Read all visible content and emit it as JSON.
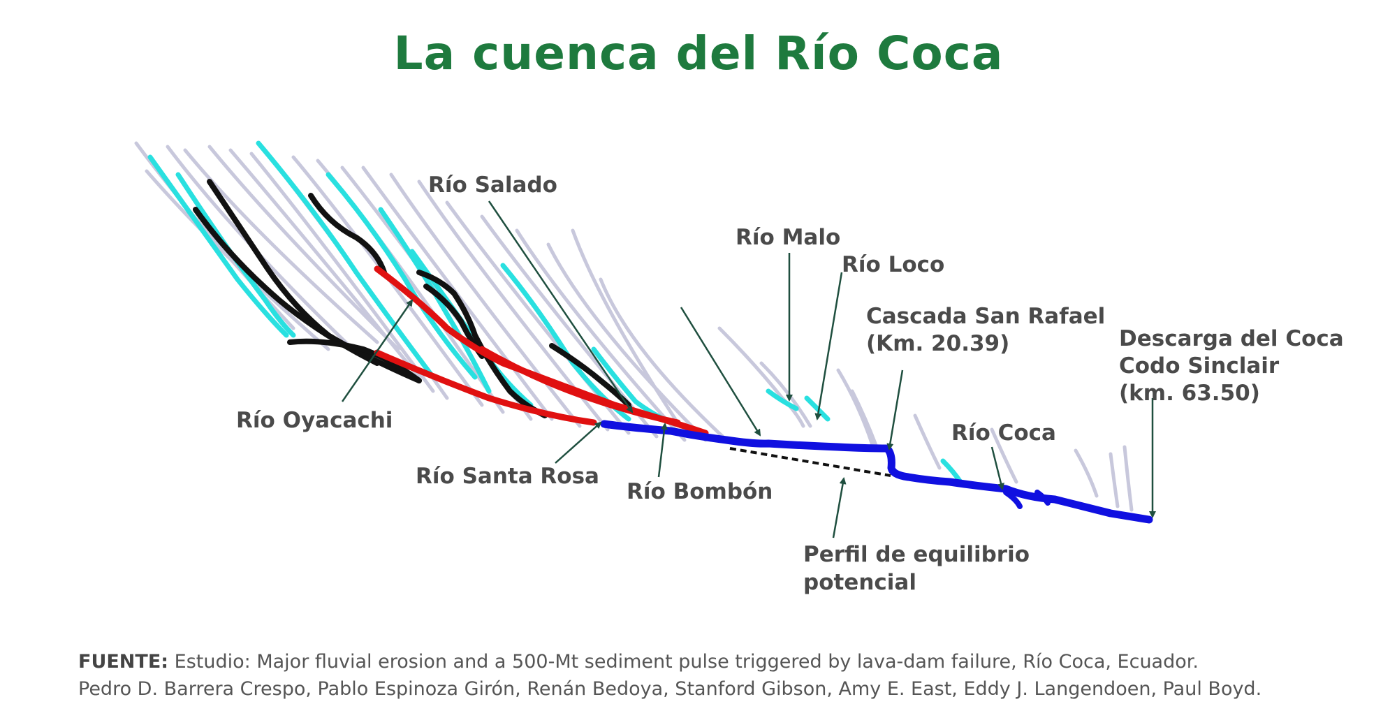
{
  "title": "La cuenca del Río Coca",
  "labels": {
    "rio_salado": "Río Salado",
    "rio_malo": "Río Malo",
    "rio_loco": "Río Loco",
    "cascada_1": "Cascada San Rafael",
    "cascada_2": "(Km. 20.39)",
    "descarga_1": "Descarga del Coca",
    "descarga_2": "Codo Sinclair",
    "descarga_3": "(km. 63.50)",
    "rio_oyacachi": "Río Oyacachi",
    "rio_santa_rosa": "Río Santa Rosa",
    "rio_bombon": "Río Bombón",
    "rio_coca": "Río Coca",
    "perfil_1": "Perfil de equilibrio",
    "perfil_2": "potencial"
  },
  "source": {
    "label": "FUENTE:",
    "line1": "Estudio: Major fluvial erosion and a 500-Mt sediment pulse triggered by lava-dam failure, Río Coca, Ecuador.",
    "line2": "Pedro D. Barrera Crespo, Pablo Espinoza Girón, Renán Bedoya, Stanford Gibson, Amy E. East, Eddy J. Langendoen, Paul Boyd."
  },
  "colors": {
    "title": "#1e7a3e",
    "arrow": "#1f4f3f",
    "main_river": "#1010e0",
    "red_profile": "#e01010",
    "black_profile": "#111111",
    "cyan_tributary": "#29e0e0",
    "grey_tributary": "#c8c8dc"
  }
}
